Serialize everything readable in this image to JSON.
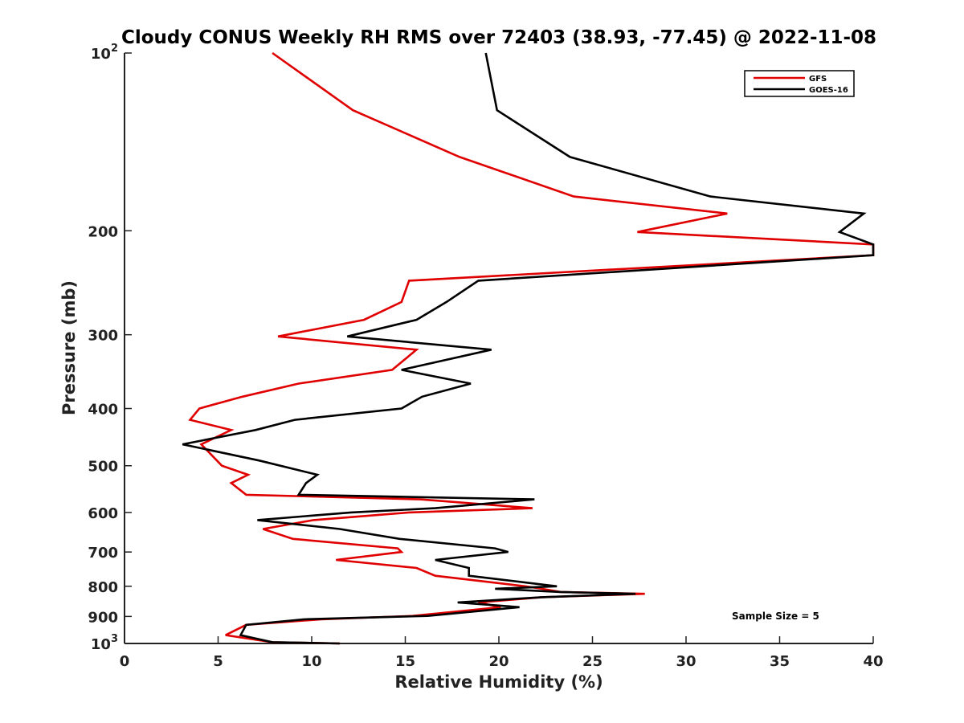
{
  "chart_data": {
    "type": "line",
    "title": "Cloudy CONUS Weekly RH RMS over 72403 (38.93, -77.45) @ 2022-11-08",
    "xlabel": "Relative Humidity (%)",
    "ylabel": "Pressure (mb)",
    "xlim": [
      0,
      40
    ],
    "ylim": [
      100,
      1000
    ],
    "y_scale": "log",
    "y_reversed": true,
    "x_ticks": [
      0,
      5,
      10,
      15,
      20,
      25,
      30,
      35,
      40
    ],
    "y_ticks": [
      {
        "value": 100,
        "base": "10",
        "exp": "2"
      },
      {
        "value": 200,
        "label": "200"
      },
      {
        "value": 300,
        "label": "300"
      },
      {
        "value": 400,
        "label": "400"
      },
      {
        "value": 500,
        "label": "500"
      },
      {
        "value": 600,
        "label": "600"
      },
      {
        "value": 700,
        "label": "700"
      },
      {
        "value": 800,
        "label": "800"
      },
      {
        "value": 900,
        "label": "900"
      },
      {
        "value": 1000,
        "base": "10",
        "exp": "3"
      }
    ],
    "grid": false,
    "legend_position": "top-right",
    "annotation": "Sample Size = 5",
    "series": [
      {
        "name": "GFS",
        "color": "#e00000",
        "points": [
          [
            7.9,
            100
          ],
          [
            12.2,
            125
          ],
          [
            17.9,
            150
          ],
          [
            24,
            175
          ],
          [
            32.2,
            187
          ],
          [
            27.4,
            201
          ],
          [
            40,
            211
          ],
          [
            40,
            220
          ],
          [
            15.2,
            243
          ],
          [
            14.8,
            264
          ],
          [
            12.8,
            283
          ],
          [
            8.2,
            302
          ],
          [
            15.6,
            318
          ],
          [
            14.3,
            344
          ],
          [
            9.3,
            363
          ],
          [
            6.3,
            382
          ],
          [
            4,
            400
          ],
          [
            3.5,
            418
          ],
          [
            5.7,
            435
          ],
          [
            4.1,
            460
          ],
          [
            5.2,
            500
          ],
          [
            6.6,
            518
          ],
          [
            5.7,
            535
          ],
          [
            6.5,
            560
          ],
          [
            15.8,
            570
          ],
          [
            21.8,
            590
          ],
          [
            15.2,
            600
          ],
          [
            10.1,
            618
          ],
          [
            7.4,
            640
          ],
          [
            9,
            665
          ],
          [
            14.6,
            690
          ],
          [
            14.8,
            700
          ],
          [
            11.3,
            722
          ],
          [
            15.6,
            745
          ],
          [
            16.6,
            768
          ],
          [
            21.4,
            800
          ],
          [
            22.3,
            808
          ],
          [
            23.3,
            818
          ],
          [
            27.8,
            824
          ],
          [
            22.3,
            835
          ],
          [
            18.9,
            852
          ],
          [
            20.1,
            868
          ],
          [
            15.4,
            898
          ],
          [
            10.5,
            910
          ],
          [
            6.5,
            930
          ],
          [
            5.4,
            968
          ],
          [
            7.9,
            995
          ],
          [
            11.5,
            1000
          ]
        ]
      },
      {
        "name": "GOES-16",
        "color": "#000000",
        "points": [
          [
            19.3,
            100
          ],
          [
            19.9,
            125
          ],
          [
            23.8,
            150
          ],
          [
            31.3,
            175
          ],
          [
            39.5,
            187
          ],
          [
            38.2,
            201
          ],
          [
            40,
            211
          ],
          [
            40,
            220
          ],
          [
            18.9,
            243
          ],
          [
            17.2,
            264
          ],
          [
            15.6,
            283
          ],
          [
            11.9,
            302
          ],
          [
            19.6,
            318
          ],
          [
            14.8,
            344
          ],
          [
            18.5,
            363
          ],
          [
            15.9,
            382
          ],
          [
            14.8,
            400
          ],
          [
            9.1,
            418
          ],
          [
            7,
            435
          ],
          [
            3.1,
            460
          ],
          [
            7.2,
            490
          ],
          [
            10.3,
            518
          ],
          [
            9.7,
            535
          ],
          [
            9.3,
            560
          ],
          [
            21.9,
            570
          ],
          [
            16.6,
            590
          ],
          [
            12.1,
            600
          ],
          [
            7.1,
            618
          ],
          [
            11.5,
            640
          ],
          [
            14.7,
            665
          ],
          [
            19.8,
            690
          ],
          [
            20.5,
            700
          ],
          [
            16.6,
            722
          ],
          [
            18.4,
            745
          ],
          [
            18.4,
            768
          ],
          [
            23.1,
            800
          ],
          [
            19.8,
            808
          ],
          [
            23.3,
            818
          ],
          [
            27.3,
            824
          ],
          [
            22.3,
            835
          ],
          [
            17.8,
            852
          ],
          [
            21.1,
            868
          ],
          [
            16.2,
            898
          ],
          [
            9.6,
            910
          ],
          [
            6.5,
            930
          ],
          [
            6.2,
            968
          ],
          [
            7.9,
            995
          ],
          [
            11.5,
            1000
          ]
        ]
      }
    ]
  }
}
